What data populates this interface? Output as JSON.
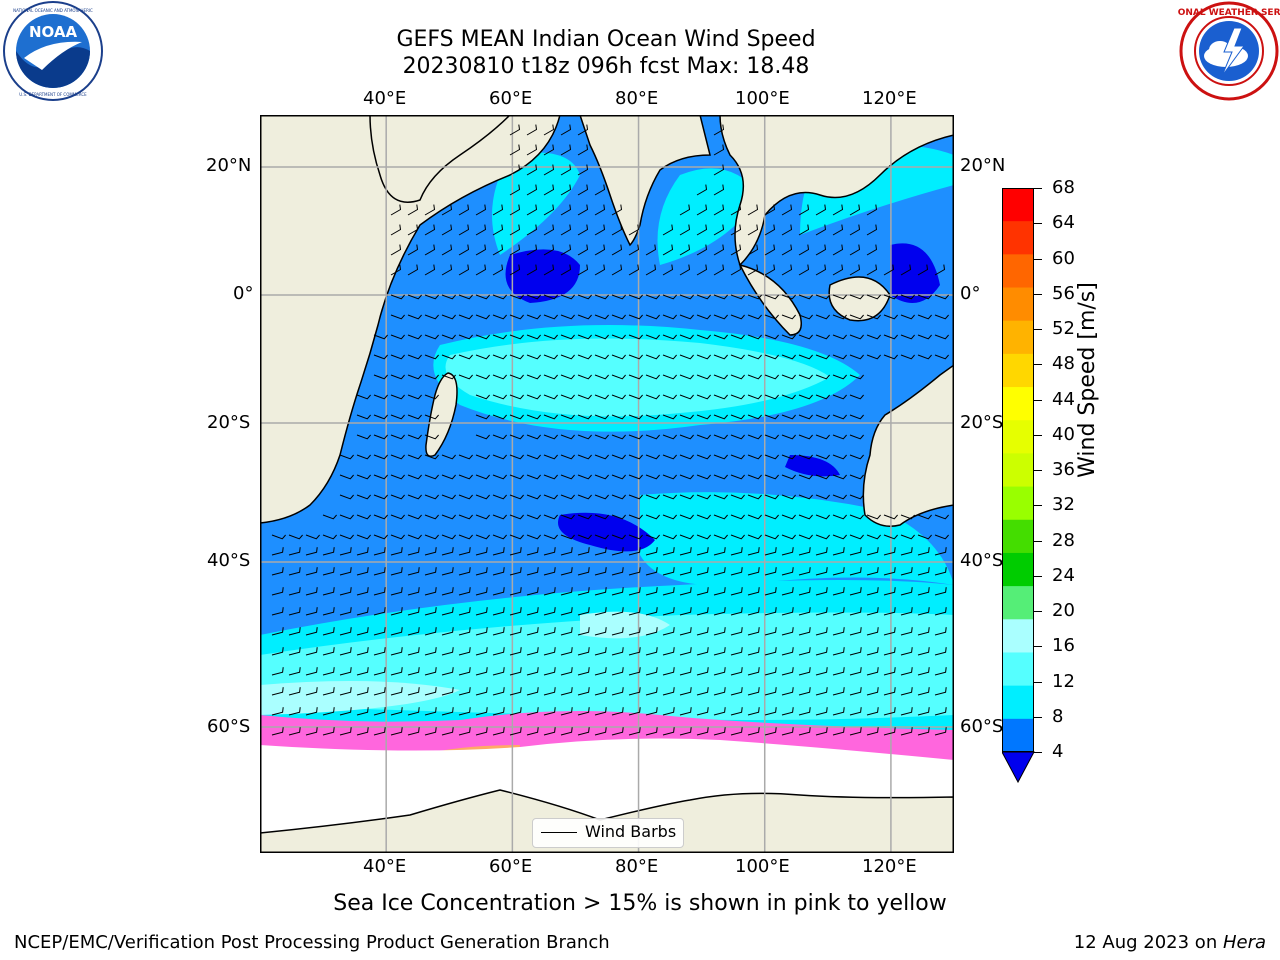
{
  "header": {
    "title_line1": "GEFS MEAN Indian Ocean Wind Speed",
    "title_line2": "20230810 t18z 096h fcst   Max: 18.48"
  },
  "logos": {
    "left": "NOAA",
    "right": "NATIONAL WEATHER SERVICE",
    "left_ring": "NATIONAL OCEANIC AND ATMOSPHERIC ADMINISTRATION • U.S. DEPARTMENT OF COMMERCE"
  },
  "axes": {
    "lon_labels": [
      "40°E",
      "60°E",
      "80°E",
      "100°E",
      "120°E"
    ],
    "lon_values": [
      40,
      60,
      80,
      100,
      120
    ],
    "lat_labels": [
      "20°N",
      "0°",
      "20°S",
      "40°S",
      "60°S"
    ],
    "lat_values": [
      20,
      0,
      -20,
      -40,
      -60
    ],
    "lon_range": [
      20,
      130
    ],
    "lat_range": [
      -72,
      28
    ],
    "grid": true
  },
  "colorbar": {
    "label": "Wind Speed [m/s]",
    "ticks": [
      "68",
      "64",
      "60",
      "56",
      "52",
      "48",
      "44",
      "40",
      "36",
      "32",
      "28",
      "24",
      "20",
      "16",
      "12",
      "8",
      "4"
    ],
    "colors": [
      "#ff0000",
      "#ff3300",
      "#ff6600",
      "#ff8c00",
      "#ffb300",
      "#ffd700",
      "#ffff00",
      "#e6ff00",
      "#ccff00",
      "#99ff00",
      "#44dd00",
      "#00cc00",
      "#55ee77",
      "#aaffff",
      "#55ffff",
      "#00eeff",
      "#0077ff"
    ],
    "under_color": "#0000ee"
  },
  "legend": {
    "label": "Wind Barbs"
  },
  "footer": {
    "subtitle": "Sea Ice Concentration > 15% is shown in pink to yellow",
    "left": "NCEP/EMC/Verification Post Processing Product Generation Branch",
    "date": "12 Aug 2023 on ",
    "machine": "Hera"
  },
  "map_colors": {
    "land": "#efeedd",
    "ice": "#ffffff",
    "ice_edge": [
      "#ff66dd",
      "#ffaa66",
      "#ffee44"
    ]
  }
}
